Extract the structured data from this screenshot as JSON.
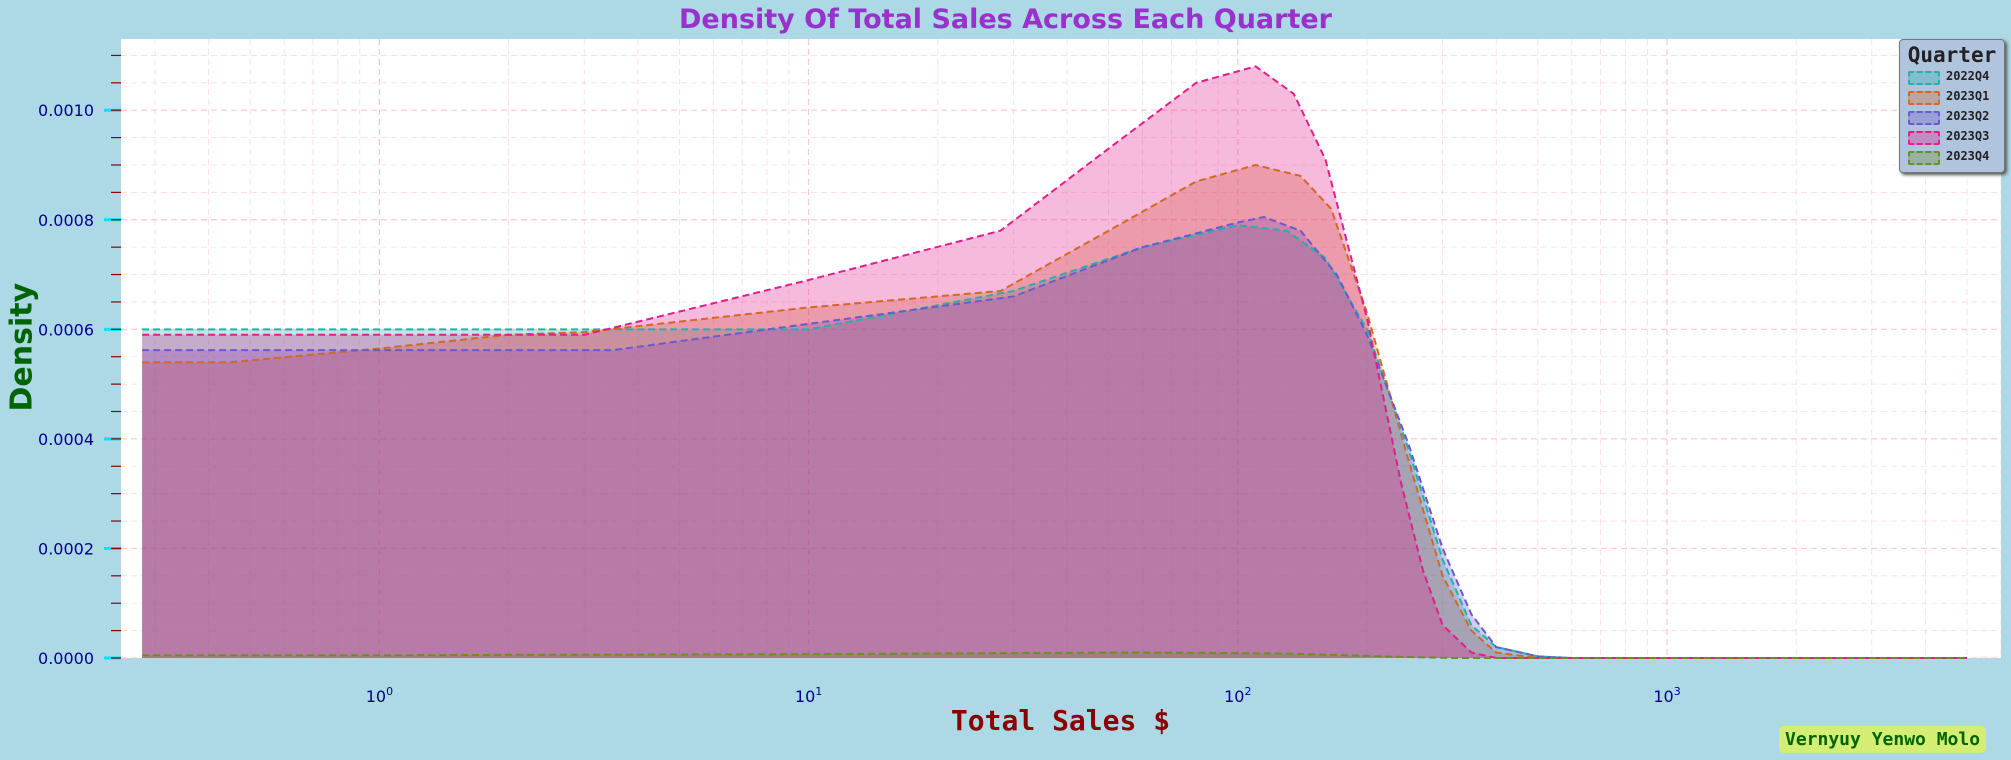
{
  "chart_data": {
    "type": "area",
    "title": "Density Of Total Sales Across Each Quarter",
    "xlabel": "Total Sales $",
    "ylabel": "Density",
    "xscale": "log",
    "xlim": [
      0.25,
      6000
    ],
    "ylim": [
      0,
      0.00113
    ],
    "yticks": [
      "0.0000",
      "0.0002",
      "0.0004",
      "0.0006",
      "0.0008",
      "0.0010"
    ],
    "xticks": [
      {
        "base": "10",
        "exp": "0",
        "value": 1
      },
      {
        "base": "10",
        "exp": "1",
        "value": 10
      },
      {
        "base": "10",
        "exp": "2",
        "value": 100
      },
      {
        "base": "10",
        "exp": "3",
        "value": 1000
      }
    ],
    "grid": true,
    "legend": {
      "title": "Quarter",
      "placement": "top-right",
      "entries": [
        "2022Q4",
        "2023Q1",
        "2023Q2",
        "2023Q3",
        "2023Q4"
      ]
    },
    "series": [
      {
        "name": "2022Q4",
        "color": "#20b2aa",
        "x": [
          0.28,
          3,
          10,
          30,
          60,
          100,
          130,
          160,
          200,
          250,
          300,
          350,
          400,
          500,
          600,
          800,
          5000
        ],
        "y": [
          0.0006,
          0.0006,
          0.0006,
          0.00067,
          0.00075,
          0.00079,
          0.00078,
          0.00073,
          0.0006,
          0.00038,
          0.00018,
          6e-05,
          2e-05,
          3e-06,
          0.0,
          0.0,
          0.0
        ]
      },
      {
        "name": "2023Q1",
        "color": "#d2691e",
        "x": [
          0.28,
          0.45,
          1,
          2,
          3,
          10,
          28,
          50,
          80,
          110,
          140,
          165,
          200,
          250,
          300,
          350,
          400,
          500,
          600,
          5000
        ],
        "y": [
          0.00054,
          0.00054,
          0.000565,
          0.00059,
          0.000595,
          0.00064,
          0.00067,
          0.00078,
          0.00087,
          0.0009,
          0.00088,
          0.00082,
          0.00063,
          0.00036,
          0.00015,
          5e-05,
          1e-05,
          0.0,
          0.0,
          0.0
        ]
      },
      {
        "name": "2023Q2",
        "color": "#6a5acd",
        "x": [
          0.28,
          1,
          3.5,
          10,
          30,
          60,
          100,
          115,
          140,
          170,
          200,
          250,
          300,
          350,
          400,
          500,
          600,
          5000
        ],
        "y": [
          0.000562,
          0.000562,
          0.000562,
          0.00061,
          0.00066,
          0.00075,
          0.000795,
          0.000805,
          0.00078,
          0.0007,
          0.00059,
          0.00039,
          0.0002,
          8e-05,
          2e-05,
          3e-06,
          0.0,
          0.0
        ]
      },
      {
        "name": "2023Q3",
        "color": "#e01e8c",
        "x": [
          0.28,
          1,
          3,
          10,
          28,
          50,
          80,
          110,
          135,
          160,
          200,
          240,
          270,
          300,
          350,
          400,
          5000
        ],
        "y": [
          0.00059,
          0.00059,
          0.00059,
          0.00069,
          0.00078,
          0.00093,
          0.00105,
          0.00108,
          0.00103,
          0.00091,
          0.00062,
          0.00032,
          0.00016,
          6e-05,
          1e-05,
          0.0,
          0.0
        ]
      },
      {
        "name": "2023Q4",
        "color": "#6b8e23",
        "x": [
          0.28,
          1,
          3,
          10,
          30,
          60,
          100,
          130,
          160,
          200,
          240,
          280,
          320,
          360,
          400,
          500,
          5000
        ],
        "y": [
          5e-06,
          5e-06,
          6e-06,
          7e-06,
          9e-06,
          1e-05,
          9e-06,
          8e-06,
          6e-06,
          4e-06,
          2e-06,
          1e-06,
          0.0,
          0.0,
          0.0,
          0.0,
          0.0
        ]
      }
    ]
  },
  "credit": "Vernyuy Yenwo Molo"
}
